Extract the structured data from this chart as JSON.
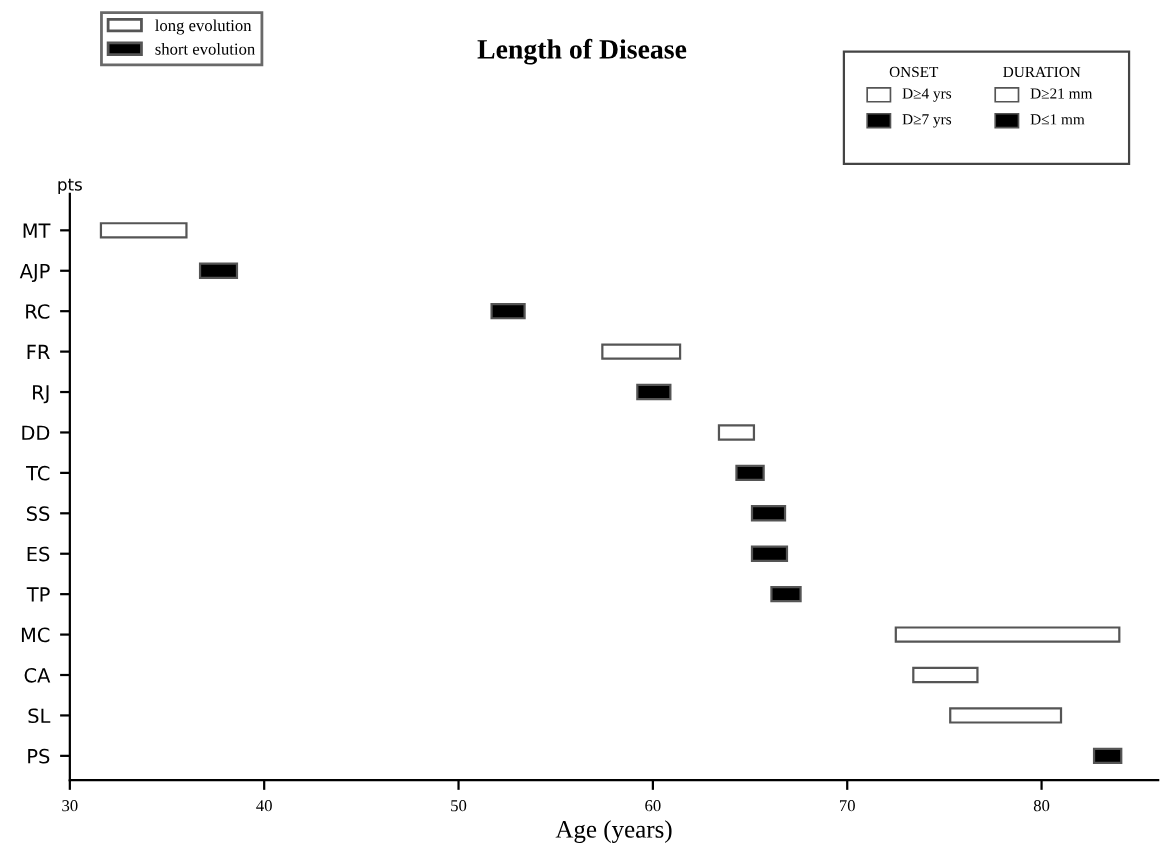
{
  "chart_data": {
    "type": "bar",
    "orientation": "horizontal",
    "title": "Length of Disease",
    "xlabel": "Age (years)",
    "ylabel": "pts",
    "categories": [
      "MT",
      "AJP",
      "RC",
      "FR",
      "RJ",
      "DD",
      "TC",
      "SS",
      "ES",
      "TP",
      "MC",
      "CA",
      "SL",
      "PS"
    ],
    "series": [
      {
        "name": "long evolution",
        "color": "#ffffff",
        "base": [
          31.6,
          null,
          null,
          57.4,
          null,
          63.4,
          null,
          null,
          null,
          null,
          72.5,
          73.4,
          75.3,
          null
        ],
        "values": [
          4.4,
          null,
          null,
          4.0,
          null,
          1.8,
          null,
          null,
          null,
          null,
          11.5,
          3.3,
          5.7,
          null
        ]
      },
      {
        "name": "short evolution",
        "color": "#000000",
        "base": [
          null,
          36.7,
          51.7,
          null,
          59.2,
          null,
          64.3,
          65.1,
          65.1,
          66.1,
          null,
          null,
          null,
          82.7
        ],
        "values": [
          null,
          1.9,
          1.7,
          null,
          1.7,
          null,
          1.4,
          1.7,
          1.8,
          1.5,
          null,
          null,
          null,
          1.4
        ]
      }
    ],
    "xlim": [
      30,
      86
    ],
    "xticks": [
      30,
      40,
      50,
      60,
      70,
      80
    ],
    "grid": false,
    "legend": "top left",
    "annotations": [
      "ONSET",
      "D≥4 yrs",
      "D≥7 yrs",
      "DURATION",
      "D≥21 mm",
      "D≤1 mm"
    ]
  }
}
